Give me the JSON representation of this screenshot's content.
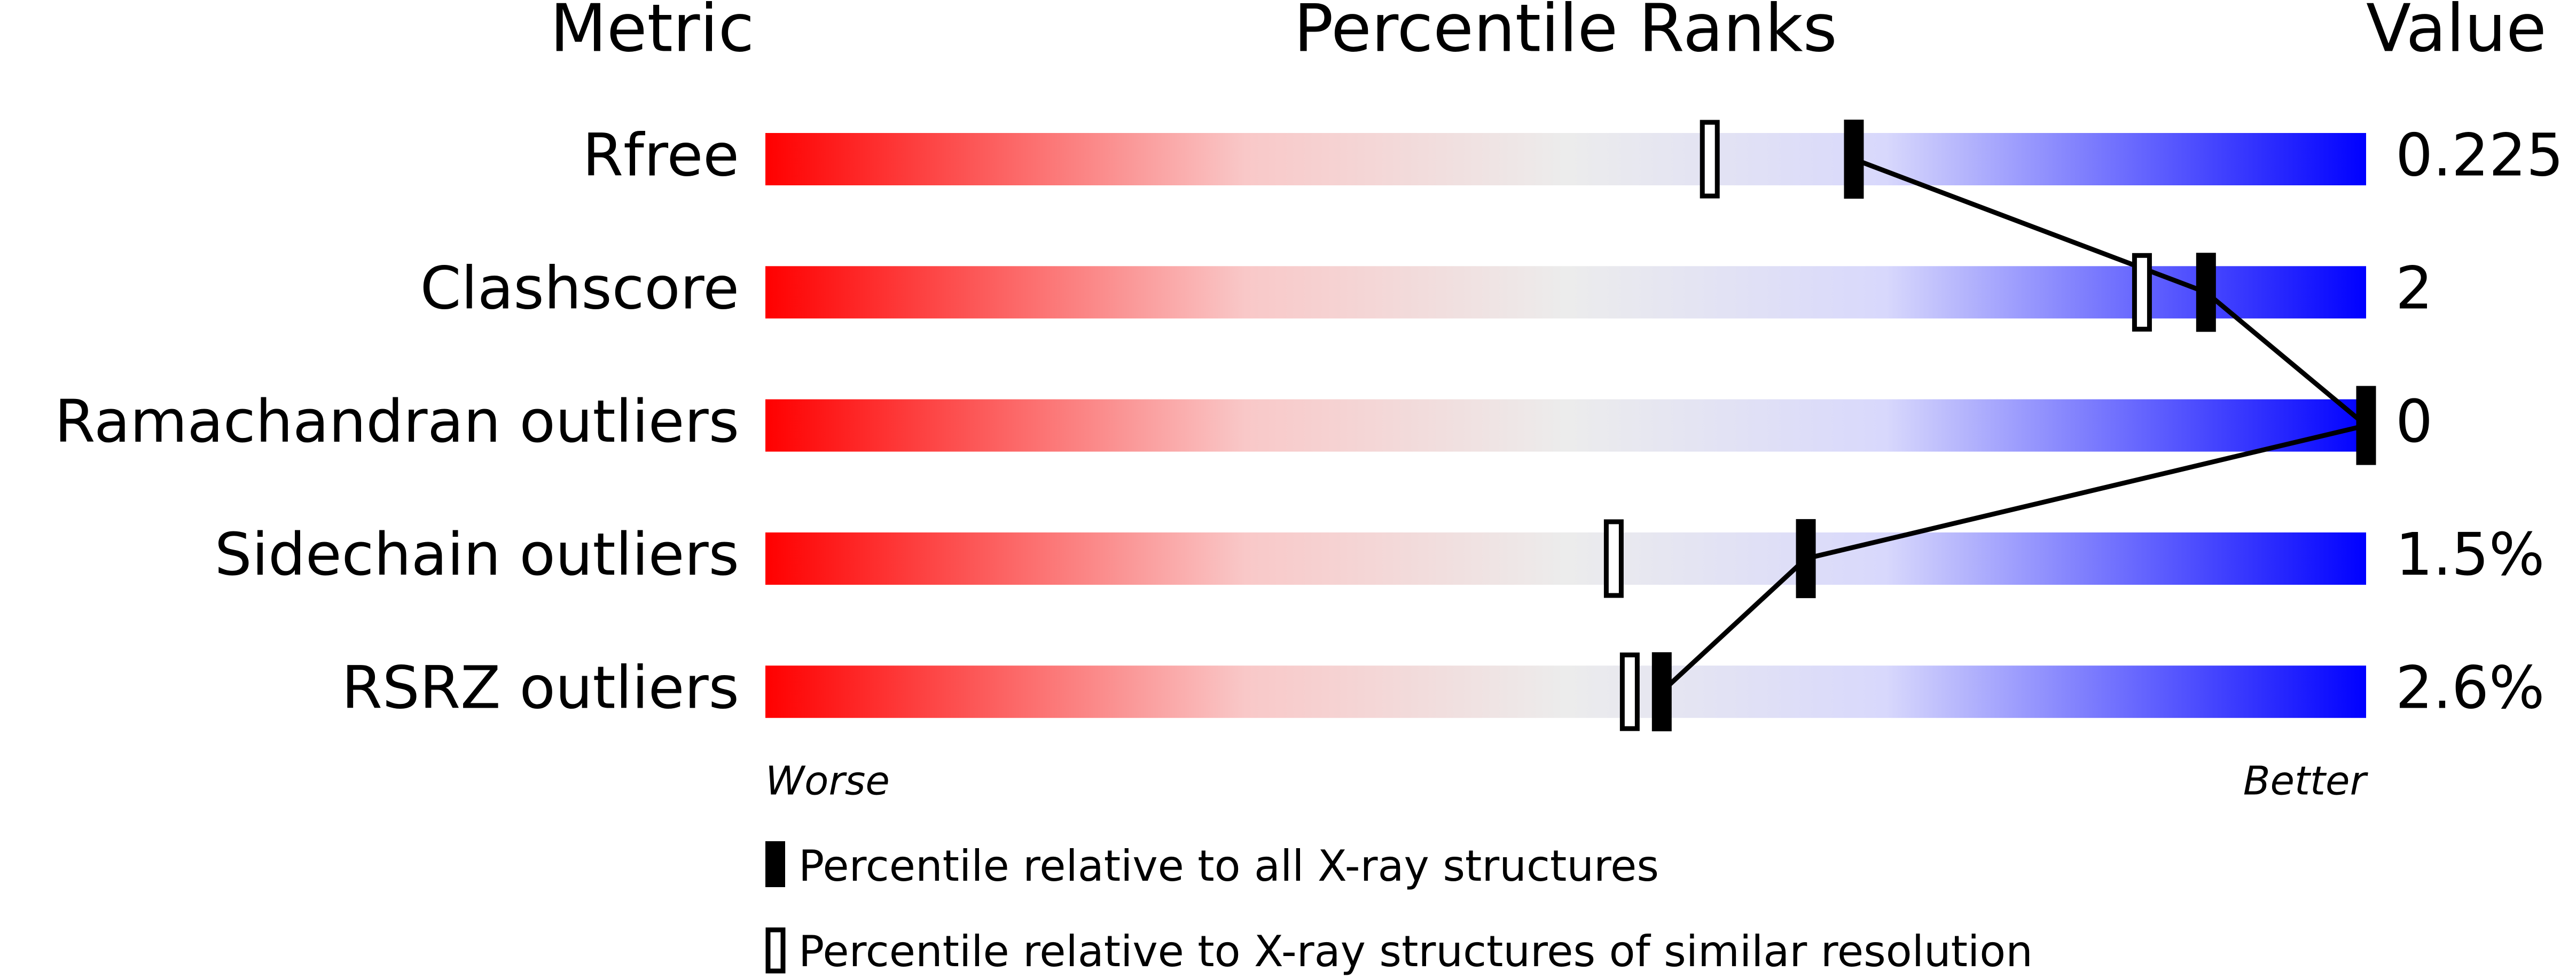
{
  "chart_data": {
    "type": "percentile-slider",
    "headers": {
      "metric": "Metric",
      "ranks": "Percentile Ranks",
      "value": "Value"
    },
    "categories": [
      "Rfree",
      "Clashscore",
      "Ramachandran outliers",
      "Sidechain outliers",
      "RSRZ outliers"
    ],
    "metric_values": [
      "0.225",
      "2",
      "0",
      "1.5%",
      "2.6%"
    ],
    "series": [
      {
        "name": "Percentile relative to all X-ray structures",
        "color": "#000000",
        "values": [
          68,
          90,
          100,
          65,
          56
        ]
      },
      {
        "name": "Percentile relative to X-ray structures of similar resolution",
        "color": "#ffffff",
        "values": [
          59,
          86,
          null,
          53,
          54
        ]
      }
    ],
    "xlim": [
      0,
      100
    ],
    "scale_labels": {
      "low": "Worse",
      "high": "Better"
    }
  }
}
